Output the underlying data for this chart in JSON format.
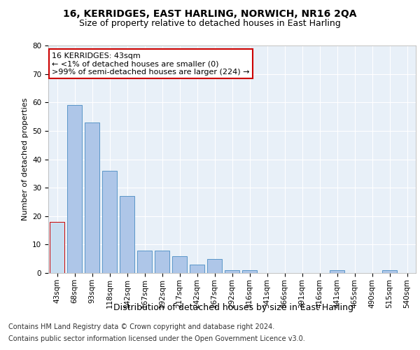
{
  "title": "16, KERRIDGES, EAST HARLING, NORWICH, NR16 2QA",
  "subtitle": "Size of property relative to detached houses in East Harling",
  "xlabel": "Distribution of detached houses by size in East Harling",
  "ylabel": "Number of detached properties",
  "categories": [
    "43sqm",
    "68sqm",
    "93sqm",
    "118sqm",
    "142sqm",
    "167sqm",
    "192sqm",
    "217sqm",
    "242sqm",
    "267sqm",
    "292sqm",
    "316sqm",
    "341sqm",
    "366sqm",
    "391sqm",
    "416sqm",
    "441sqm",
    "465sqm",
    "490sqm",
    "515sqm",
    "540sqm"
  ],
  "values": [
    18,
    59,
    53,
    36,
    27,
    8,
    8,
    6,
    3,
    5,
    1,
    1,
    0,
    0,
    0,
    0,
    1,
    0,
    0,
    1,
    0
  ],
  "bar_color": "#aec6e8",
  "bar_edge_color": "#5a96c8",
  "highlight_bar_index": 0,
  "highlight_bar_color": "#c8ddf0",
  "highlight_bar_edge_color": "#cc0000",
  "annotation_box_text": "16 KERRIDGES: 43sqm\n← <1% of detached houses are smaller (0)\n>99% of semi-detached houses are larger (224) →",
  "annotation_box_color": "#ffffff",
  "annotation_box_edge_color": "#cc0000",
  "ylim": [
    0,
    80
  ],
  "yticks": [
    0,
    10,
    20,
    30,
    40,
    50,
    60,
    70,
    80
  ],
  "plot_background_color": "#e8f0f8",
  "footer_line1": "Contains HM Land Registry data © Crown copyright and database right 2024.",
  "footer_line2": "Contains public sector information licensed under the Open Government Licence v3.0.",
  "title_fontsize": 10,
  "subtitle_fontsize": 9,
  "xlabel_fontsize": 9,
  "ylabel_fontsize": 8,
  "tick_fontsize": 7.5,
  "annotation_fontsize": 8,
  "footer_fontsize": 7
}
